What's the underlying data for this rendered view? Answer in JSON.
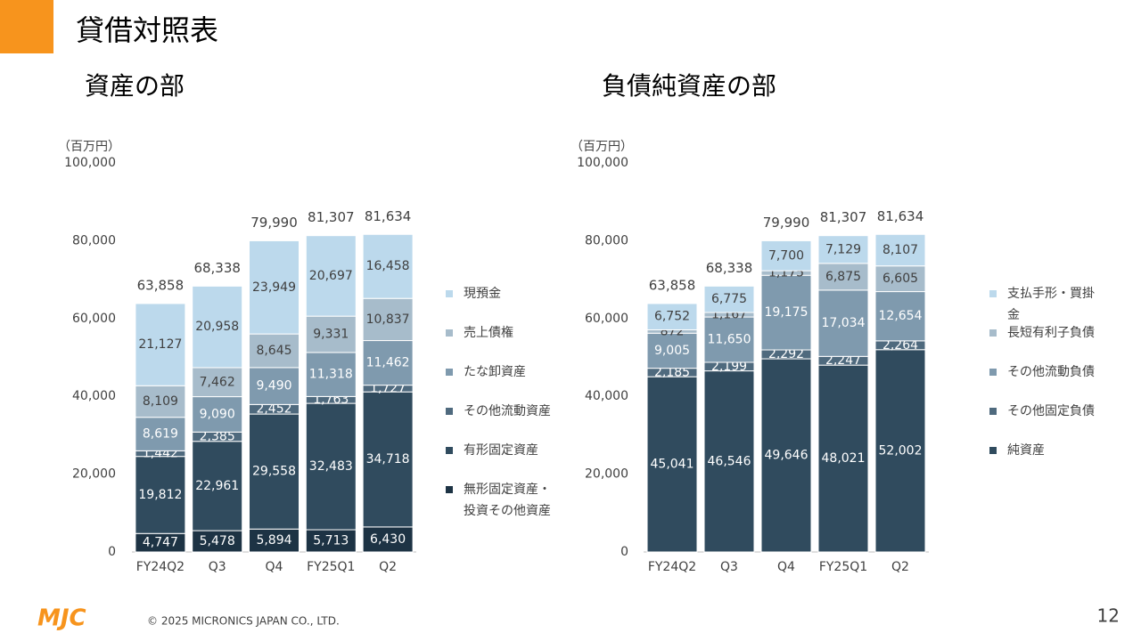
{
  "page_title": "貸借対照表",
  "copyright": "© 2025 MICRONICS JAPAN CO., LTD.",
  "page_number": "12",
  "logo": "MJC",
  "chart_data": [
    {
      "type": "stacked_bar",
      "title": "資産の部",
      "unit_label": "（百万円）",
      "categories": [
        "FY24Q2",
        "Q3",
        "Q4",
        "FY25Q1",
        "Q2"
      ],
      "ylim": [
        0,
        100000
      ],
      "yticks": [
        0,
        {
          "value": 20000,
          "label": "20,000"
        },
        {
          "value": 40000,
          "label": "40,000"
        },
        {
          "value": 60000,
          "label": "60,000"
        },
        {
          "value": 80000,
          "label": "80,000"
        },
        {
          "value": 100000,
          "label": "100,000"
        }
      ],
      "series": [
        {
          "name": "無形固定資産・投資その他資産",
          "color": "#1d3344",
          "values": [
            4747,
            5478,
            5894,
            5713,
            6430
          ],
          "value_labels": [
            "4,747",
            "5,478",
            "5,894",
            "5,713",
            "6,430"
          ]
        },
        {
          "name": "有形固定資産",
          "color": "#304b5e",
          "values": [
            19812,
            22961,
            29558,
            32483,
            34718
          ],
          "value_labels": [
            "19,812",
            "22,961",
            "29,558",
            "32,483",
            "34,718"
          ]
        },
        {
          "name": "その他流動資産",
          "color": "#4f6a7e",
          "values": [
            1442,
            2385,
            2452,
            1763,
            1727
          ],
          "value_labels": [
            "1,442",
            "2,385",
            "2,452",
            "1,763",
            "1,727"
          ]
        },
        {
          "name": "たな卸資産",
          "color": "#7f9aae",
          "values": [
            8619,
            9090,
            9490,
            11318,
            11462
          ],
          "value_labels": [
            "8,619",
            "9,090",
            "9,490",
            "11,318",
            "11,462"
          ]
        },
        {
          "name": "売上債権",
          "color": "#a7bccb",
          "values": [
            8109,
            7462,
            8645,
            9331,
            10837
          ],
          "value_labels": [
            "8,109",
            "7,462",
            "8,645",
            "9,331",
            "10,837"
          ]
        },
        {
          "name": "現預金",
          "color": "#bcd9ec",
          "values": [
            21127,
            20958,
            23949,
            20697,
            16458
          ],
          "value_labels": [
            "21,127",
            "20,958",
            "23,949",
            "20,697",
            "16,458"
          ]
        }
      ],
      "totals": [
        63858,
        68338,
        79990,
        81307,
        81634
      ],
      "total_labels": [
        "63,858",
        "68,338",
        "79,990",
        "81,307",
        "81,634"
      ]
    },
    {
      "type": "stacked_bar",
      "title": "負債純資産の部",
      "unit_label": "（百万円）",
      "categories": [
        "FY24Q2",
        "Q3",
        "Q4",
        "FY25Q1",
        "Q2"
      ],
      "ylim": [
        0,
        100000
      ],
      "yticks": [
        0,
        {
          "value": 20000,
          "label": "20,000"
        },
        {
          "value": 40000,
          "label": "40,000"
        },
        {
          "value": 60000,
          "label": "60,000"
        },
        {
          "value": 80000,
          "label": "80,000"
        },
        {
          "value": 100000,
          "label": "100,000"
        }
      ],
      "series": [
        {
          "name": "純資産",
          "color": "#304b5e",
          "values": [
            45041,
            46546,
            49646,
            48021,
            52002
          ],
          "value_labels": [
            "45,041",
            "46,546",
            "49,646",
            "48,021",
            "52,002"
          ]
        },
        {
          "name": "その他固定負債",
          "color": "#4f6a7e",
          "values": [
            2185,
            2199,
            2292,
            2247,
            2264
          ],
          "value_labels": [
            "2,185",
            "2,199",
            "2,292",
            "2,247",
            "2,264"
          ]
        },
        {
          "name": "その他流動負債",
          "color": "#7f9aae",
          "values": [
            9005,
            11650,
            19175,
            17034,
            12654
          ],
          "value_labels": [
            "9,005",
            "11,650",
            "19,175",
            "17,034",
            "12,654"
          ]
        },
        {
          "name": "長短有利子負債",
          "color": "#a7bccb",
          "values": [
            872,
            1167,
            1175,
            6875,
            6605
          ],
          "value_labels": [
            "872",
            "1,167",
            "1,175",
            "6,875",
            "6,605"
          ]
        },
        {
          "name": "支払手形・買掛金",
          "color": "#bcd9ec",
          "values": [
            6752,
            6775,
            7700,
            7129,
            8107
          ],
          "value_labels": [
            "6,752",
            "6,775",
            "7,700",
            "7,129",
            "8,107"
          ]
        }
      ],
      "totals": [
        63858,
        68338,
        79990,
        81307,
        81634
      ],
      "total_labels": [
        "63,858",
        "68,338",
        "79,990",
        "81,307",
        "81,634"
      ]
    }
  ]
}
